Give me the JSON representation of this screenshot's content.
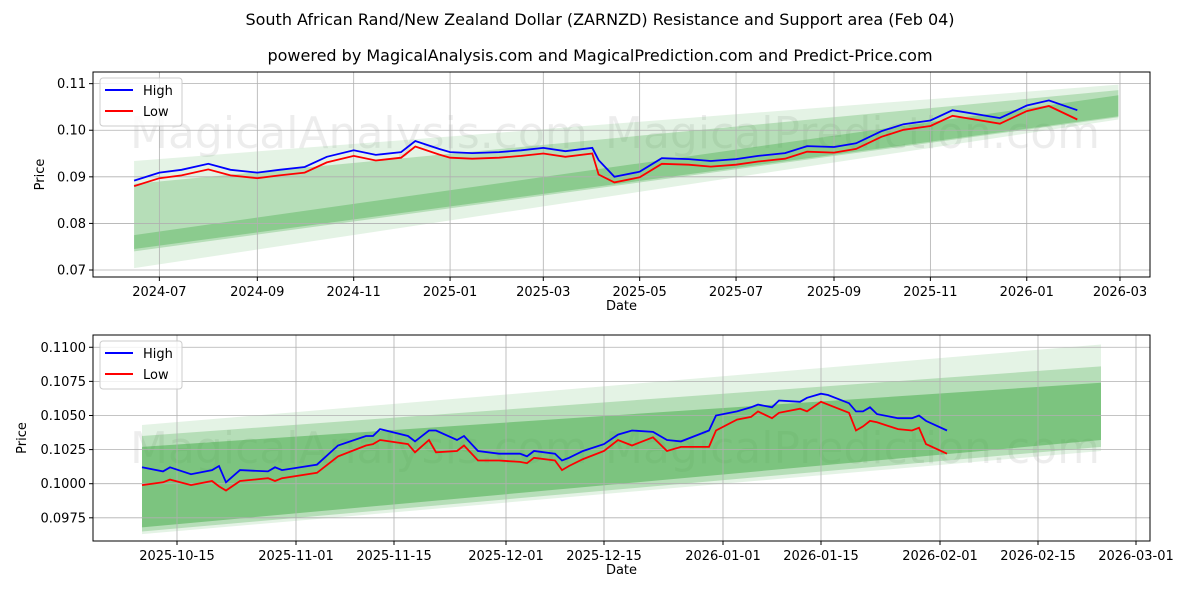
{
  "title": "South African Rand/New Zealand Dollar (ZARNZD) Resistance and Support area (Feb 04)",
  "subtitle": "powered by MagicalAnalysis.com and MagicalPrediction.com and Predict-Price.com",
  "watermarks": [
    "MagicalAnalysis.com",
    "MagicalPrediction.com"
  ],
  "colors": {
    "high": "#0000ff",
    "low": "#ff0000",
    "band": "#4caf50"
  },
  "chart_data": [
    {
      "type": "line",
      "xlabel": "Date",
      "ylabel": "Price",
      "ylim": [
        0.0685,
        0.1125
      ],
      "xlim": [
        "2024-05-20",
        "2026-03-20"
      ],
      "yticks": [
        0.07,
        0.08,
        0.09,
        0.1,
        0.11
      ],
      "ytick_labels": [
        "0.07",
        "0.08",
        "0.09",
        "0.10",
        "0.11"
      ],
      "xticks": [
        "2024-07-01",
        "2024-09-01",
        "2024-11-01",
        "2025-01-01",
        "2025-03-01",
        "2025-05-01",
        "2025-07-01",
        "2025-09-01",
        "2025-11-01",
        "2026-01-01",
        "2026-03-01"
      ],
      "xtick_labels": [
        "2024-07",
        "2024-09",
        "2024-11",
        "2025-01",
        "2025-03",
        "2025-05",
        "2025-07",
        "2025-09",
        "2025-11",
        "2026-01",
        "2026-03"
      ],
      "grid": true,
      "legend": {
        "position": "top-left",
        "entries": [
          "High",
          "Low"
        ]
      },
      "bands": [
        {
          "start": "2024-06-15",
          "end": "2026-02-28",
          "start_range": [
            0.0704,
            0.0934
          ],
          "end_range": [
            0.1023,
            0.1098
          ],
          "opacity": 0.15
        },
        {
          "start": "2024-06-15",
          "end": "2026-02-28",
          "start_range": [
            0.074,
            0.0885
          ],
          "end_range": [
            0.1028,
            0.1086
          ],
          "opacity": 0.3
        },
        {
          "start": "2024-06-15",
          "end": "2026-02-28",
          "start_range": [
            0.0745,
            0.0775
          ],
          "end_range": [
            0.103,
            0.1075
          ],
          "opacity": 0.4
        }
      ],
      "x": [
        "2024-06-15",
        "2024-07-01",
        "2024-07-15",
        "2024-08-01",
        "2024-08-15",
        "2024-09-01",
        "2024-09-15",
        "2024-10-01",
        "2024-10-15",
        "2024-11-01",
        "2024-11-15",
        "2024-12-01",
        "2024-12-10",
        "2024-12-25",
        "2025-01-01",
        "2025-01-15",
        "2025-02-01",
        "2025-02-15",
        "2025-03-01",
        "2025-03-15",
        "2025-04-01",
        "2025-04-05",
        "2025-04-15",
        "2025-05-01",
        "2025-05-15",
        "2025-06-01",
        "2025-06-15",
        "2025-07-01",
        "2025-07-15",
        "2025-08-01",
        "2025-08-15",
        "2025-09-01",
        "2025-09-15",
        "2025-10-01",
        "2025-10-15",
        "2025-11-01",
        "2025-11-15",
        "2025-12-01",
        "2025-12-15",
        "2026-01-01",
        "2026-01-15",
        "2026-02-02"
      ],
      "series": [
        {
          "name": "High",
          "values": [
            0.0892,
            0.0909,
            0.0915,
            0.0928,
            0.0915,
            0.0909,
            0.0915,
            0.0921,
            0.0943,
            0.0957,
            0.0947,
            0.0953,
            0.0977,
            0.096,
            0.0953,
            0.0951,
            0.0953,
            0.0957,
            0.0962,
            0.0955,
            0.0962,
            0.0936,
            0.09,
            0.0911,
            0.094,
            0.0938,
            0.0934,
            0.0938,
            0.0945,
            0.0951,
            0.0966,
            0.0964,
            0.0972,
            0.0998,
            0.1013,
            0.1021,
            0.1043,
            0.1034,
            0.1026,
            0.1053,
            0.1064,
            0.1043
          ]
        },
        {
          "name": "Low",
          "values": [
            0.088,
            0.0897,
            0.0903,
            0.0916,
            0.0903,
            0.0897,
            0.0903,
            0.0909,
            0.0931,
            0.0945,
            0.0935,
            0.0941,
            0.0965,
            0.0948,
            0.0941,
            0.0939,
            0.0941,
            0.0945,
            0.095,
            0.0943,
            0.095,
            0.0905,
            0.0888,
            0.0899,
            0.0928,
            0.0926,
            0.0922,
            0.0926,
            0.0933,
            0.0939,
            0.0954,
            0.0952,
            0.096,
            0.0986,
            0.1001,
            0.1009,
            0.1031,
            0.1022,
            0.1014,
            0.1041,
            0.1052,
            0.1023
          ]
        }
      ]
    },
    {
      "type": "line",
      "xlabel": "Date",
      "ylabel": "Price",
      "ylim": [
        0.0958,
        0.1109
      ],
      "xlim": [
        "2025-10-03",
        "2026-03-03"
      ],
      "yticks": [
        0.0975,
        0.1,
        0.1025,
        0.105,
        0.1075,
        0.11
      ],
      "ytick_labels": [
        "0.0975",
        "0.1000",
        "0.1025",
        "0.1050",
        "0.1075",
        "0.1100"
      ],
      "xticks": [
        "2025-10-15",
        "2025-11-01",
        "2025-11-15",
        "2025-12-01",
        "2025-12-15",
        "2026-01-01",
        "2026-01-15",
        "2026-02-01",
        "2026-02-15",
        "2026-03-01"
      ],
      "xtick_labels": [
        "2025-10-15",
        "2025-11-01",
        "2025-11-15",
        "2025-12-01",
        "2025-12-15",
        "2026-01-01",
        "2026-01-15",
        "2026-02-01",
        "2026-02-15",
        "2026-03-01"
      ],
      "grid": true,
      "legend": {
        "position": "top-left",
        "entries": [
          "High",
          "Low"
        ]
      },
      "bands": [
        {
          "start": "2025-10-10",
          "end": "2026-02-24",
          "start_range": [
            0.0963,
            0.1043
          ],
          "end_range": [
            0.1024,
            0.1102
          ],
          "opacity": 0.15
        },
        {
          "start": "2025-10-10",
          "end": "2026-02-24",
          "start_range": [
            0.0965,
            0.1035
          ],
          "end_range": [
            0.1027,
            0.1086
          ],
          "opacity": 0.3
        },
        {
          "start": "2025-10-10",
          "end": "2026-02-24",
          "start_range": [
            0.0968,
            0.1027
          ],
          "end_range": [
            0.1032,
            0.1074
          ],
          "opacity": 0.55
        }
      ],
      "x": [
        "2025-10-10",
        "2025-10-13",
        "2025-10-14",
        "2025-10-17",
        "2025-10-20",
        "2025-10-21",
        "2025-10-22",
        "2025-10-24",
        "2025-10-28",
        "2025-10-29",
        "2025-10-30",
        "2025-11-04",
        "2025-11-07",
        "2025-11-11",
        "2025-11-12",
        "2025-11-13",
        "2025-11-17",
        "2025-11-18",
        "2025-11-20",
        "2025-11-21",
        "2025-11-24",
        "2025-11-25",
        "2025-11-27",
        "2025-11-30",
        "2025-12-03",
        "2025-12-04",
        "2025-12-05",
        "2025-12-08",
        "2025-12-09",
        "2025-12-10",
        "2025-12-12",
        "2025-12-15",
        "2025-12-17",
        "2025-12-19",
        "2025-12-22",
        "2025-12-24",
        "2025-12-26",
        "2025-12-30",
        "2025-12-31",
        "2026-01-03",
        "2026-01-05",
        "2026-01-06",
        "2026-01-08",
        "2026-01-09",
        "2026-01-12",
        "2026-01-13",
        "2026-01-15",
        "2026-01-16",
        "2026-01-19",
        "2026-01-20",
        "2026-01-21",
        "2026-01-22",
        "2026-01-23",
        "2026-01-26",
        "2026-01-28",
        "2026-01-29",
        "2026-01-30",
        "2026-02-02"
      ],
      "series": [
        {
          "name": "High",
          "values": [
            0.1012,
            0.1009,
            0.1012,
            0.1007,
            0.101,
            0.1013,
            0.1001,
            0.101,
            0.1009,
            0.1012,
            0.101,
            0.1014,
            0.1028,
            0.1035,
            0.1035,
            0.104,
            0.1035,
            0.1031,
            0.1039,
            0.1039,
            0.1032,
            0.1035,
            0.1024,
            0.1022,
            0.1022,
            0.102,
            0.1024,
            0.1022,
            0.1017,
            0.1019,
            0.1024,
            0.1029,
            0.1036,
            0.1039,
            0.1038,
            0.1032,
            0.1031,
            0.1039,
            0.105,
            0.1053,
            0.1056,
            0.1058,
            0.1056,
            0.1061,
            0.106,
            0.1063,
            0.1066,
            0.1065,
            0.1059,
            0.1053,
            0.1053,
            0.1056,
            0.1051,
            0.1048,
            0.1048,
            0.105,
            0.1046,
            0.1039
          ]
        },
        {
          "name": "Low",
          "values": [
            0.0999,
            0.1001,
            0.1003,
            0.0999,
            0.1002,
            0.0998,
            0.0995,
            0.1002,
            0.1004,
            0.1002,
            0.1004,
            0.1008,
            0.102,
            0.1028,
            0.1029,
            0.1032,
            0.1029,
            0.1023,
            0.1032,
            0.1023,
            0.1024,
            0.1028,
            0.1017,
            0.1017,
            0.1016,
            0.1015,
            0.1019,
            0.1017,
            0.101,
            0.1013,
            0.1018,
            0.1024,
            0.1032,
            0.1028,
            0.1034,
            0.1024,
            0.1027,
            0.1027,
            0.1039,
            0.1047,
            0.1049,
            0.1053,
            0.1048,
            0.1052,
            0.1055,
            0.1053,
            0.106,
            0.1058,
            0.1052,
            0.1039,
            0.1042,
            0.1046,
            0.1045,
            0.104,
            0.1039,
            0.1041,
            0.1029,
            0.1022
          ]
        }
      ]
    }
  ]
}
